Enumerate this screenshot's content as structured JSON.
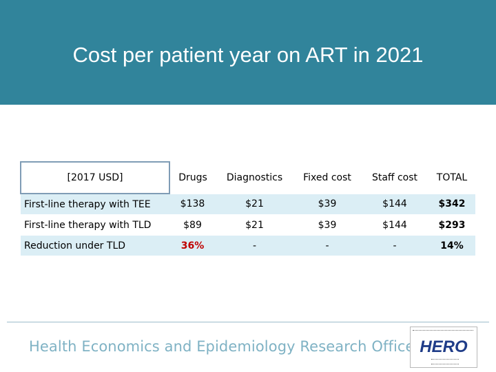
{
  "header": {
    "title": "Cost per patient year on ART in 2021",
    "band_color": "#31849b"
  },
  "table": {
    "columns": [
      "[2017 USD]",
      "Drugs",
      "Diagnostics",
      "Fixed cost",
      "Staff cost",
      "TOTAL"
    ],
    "rows": [
      {
        "label": "First-line therapy with TEE",
        "cells": [
          "$138",
          "$21",
          "$39",
          "$144",
          "$342"
        ]
      },
      {
        "label": "First-line therapy with TLD",
        "cells": [
          "$89",
          "$21",
          "$39",
          "$144",
          "$293"
        ]
      },
      {
        "label": "Reduction under TLD",
        "cells": [
          "36%",
          "-",
          "-",
          "-",
          "14%"
        ]
      }
    ],
    "highlight_color": "#c00000"
  },
  "footer": {
    "org_name": "Health Economics and Epidemiology Research Office",
    "logo_text": "HERO",
    "logo_icon": "hero-logo-icon"
  }
}
